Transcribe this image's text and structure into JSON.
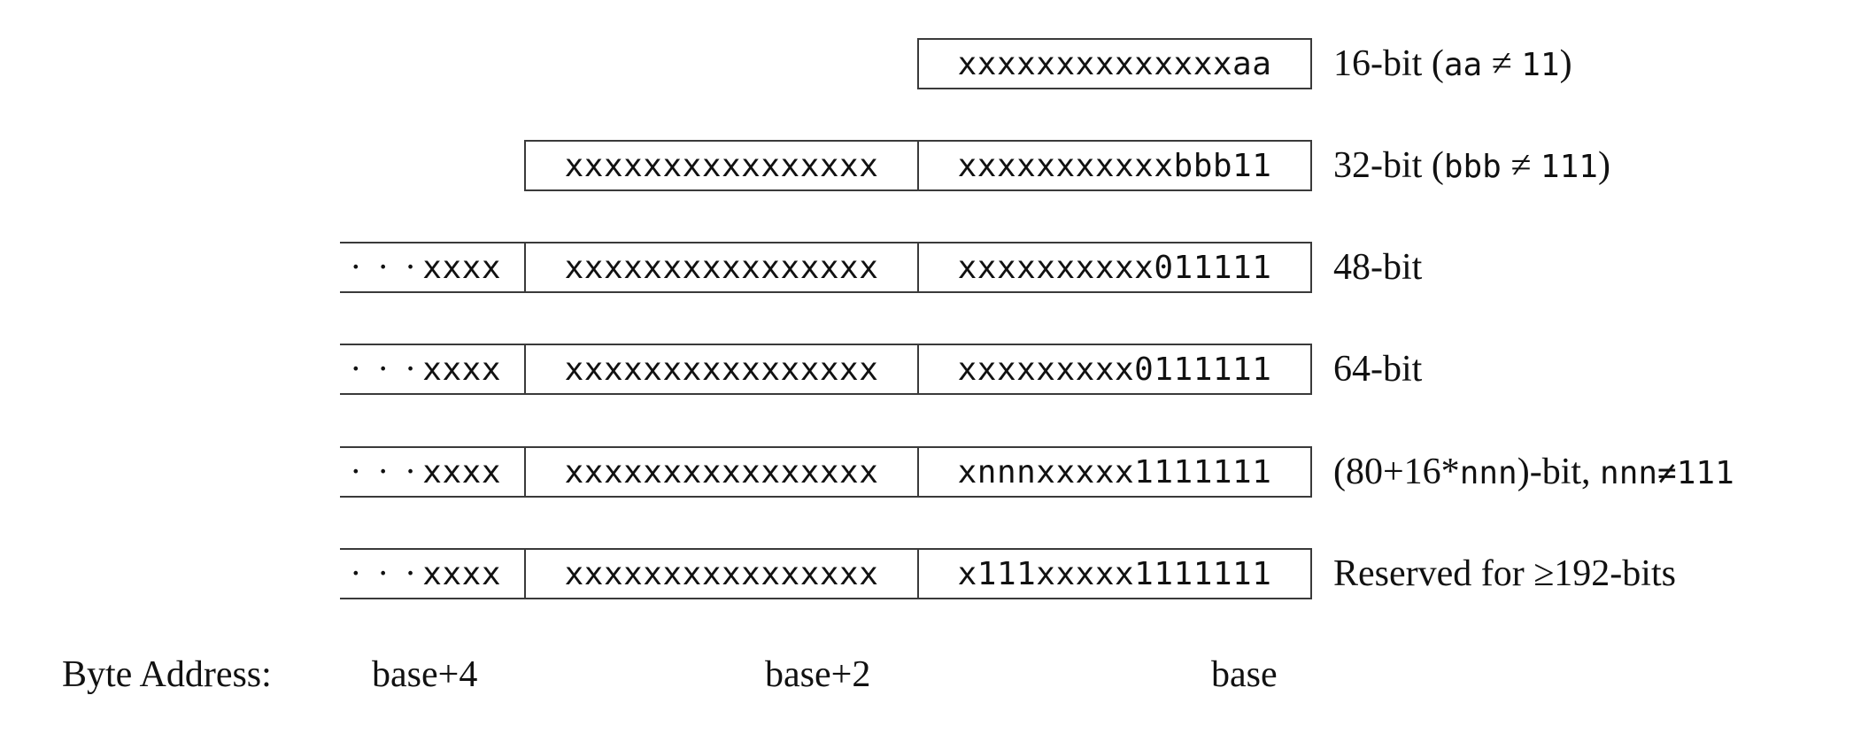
{
  "rows": [
    {
      "cells": [
        "xxxxxxxxxxxxxxaa"
      ],
      "label_pre": "16-bit (",
      "label_mono1": "aa",
      "label_mid": " ≠ ",
      "label_mono2": "11",
      "label_post": ")"
    },
    {
      "cells": [
        "xxxxxxxxxxxxxxxx",
        "xxxxxxxxxxxbbb11"
      ],
      "label_pre": "32-bit (",
      "label_mono1": "bbb",
      "label_mid": " ≠ ",
      "label_mono2": "111",
      "label_post": ")"
    },
    {
      "cells": [
        "xxxx",
        "xxxxxxxxxxxxxxxx",
        "xxxxxxxxxx011111"
      ],
      "label": "48-bit"
    },
    {
      "cells": [
        "xxxx",
        "xxxxxxxxxxxxxxxx",
        "xxxxxxxxx0111111"
      ],
      "label": "64-bit"
    },
    {
      "cells": [
        "xxxx",
        "xxxxxxxxxxxxxxxx",
        "xnnnxxxxx1111111"
      ],
      "label_pre": "(80+16*",
      "label_mono1": "nnn",
      "label_mid": ")-bit, ",
      "label_mono2": "nnn≠111",
      "label_post": ""
    },
    {
      "cells": [
        "xxxx",
        "xxxxxxxxxxxxxxxx",
        "x111xxxxx1111111"
      ],
      "label": "Reserved for ≥192-bits"
    }
  ],
  "ellipsis": "· · ·",
  "byte_address": {
    "title": "Byte Address:",
    "base4": "base+4",
    "base2": "base+2",
    "base": "base"
  }
}
